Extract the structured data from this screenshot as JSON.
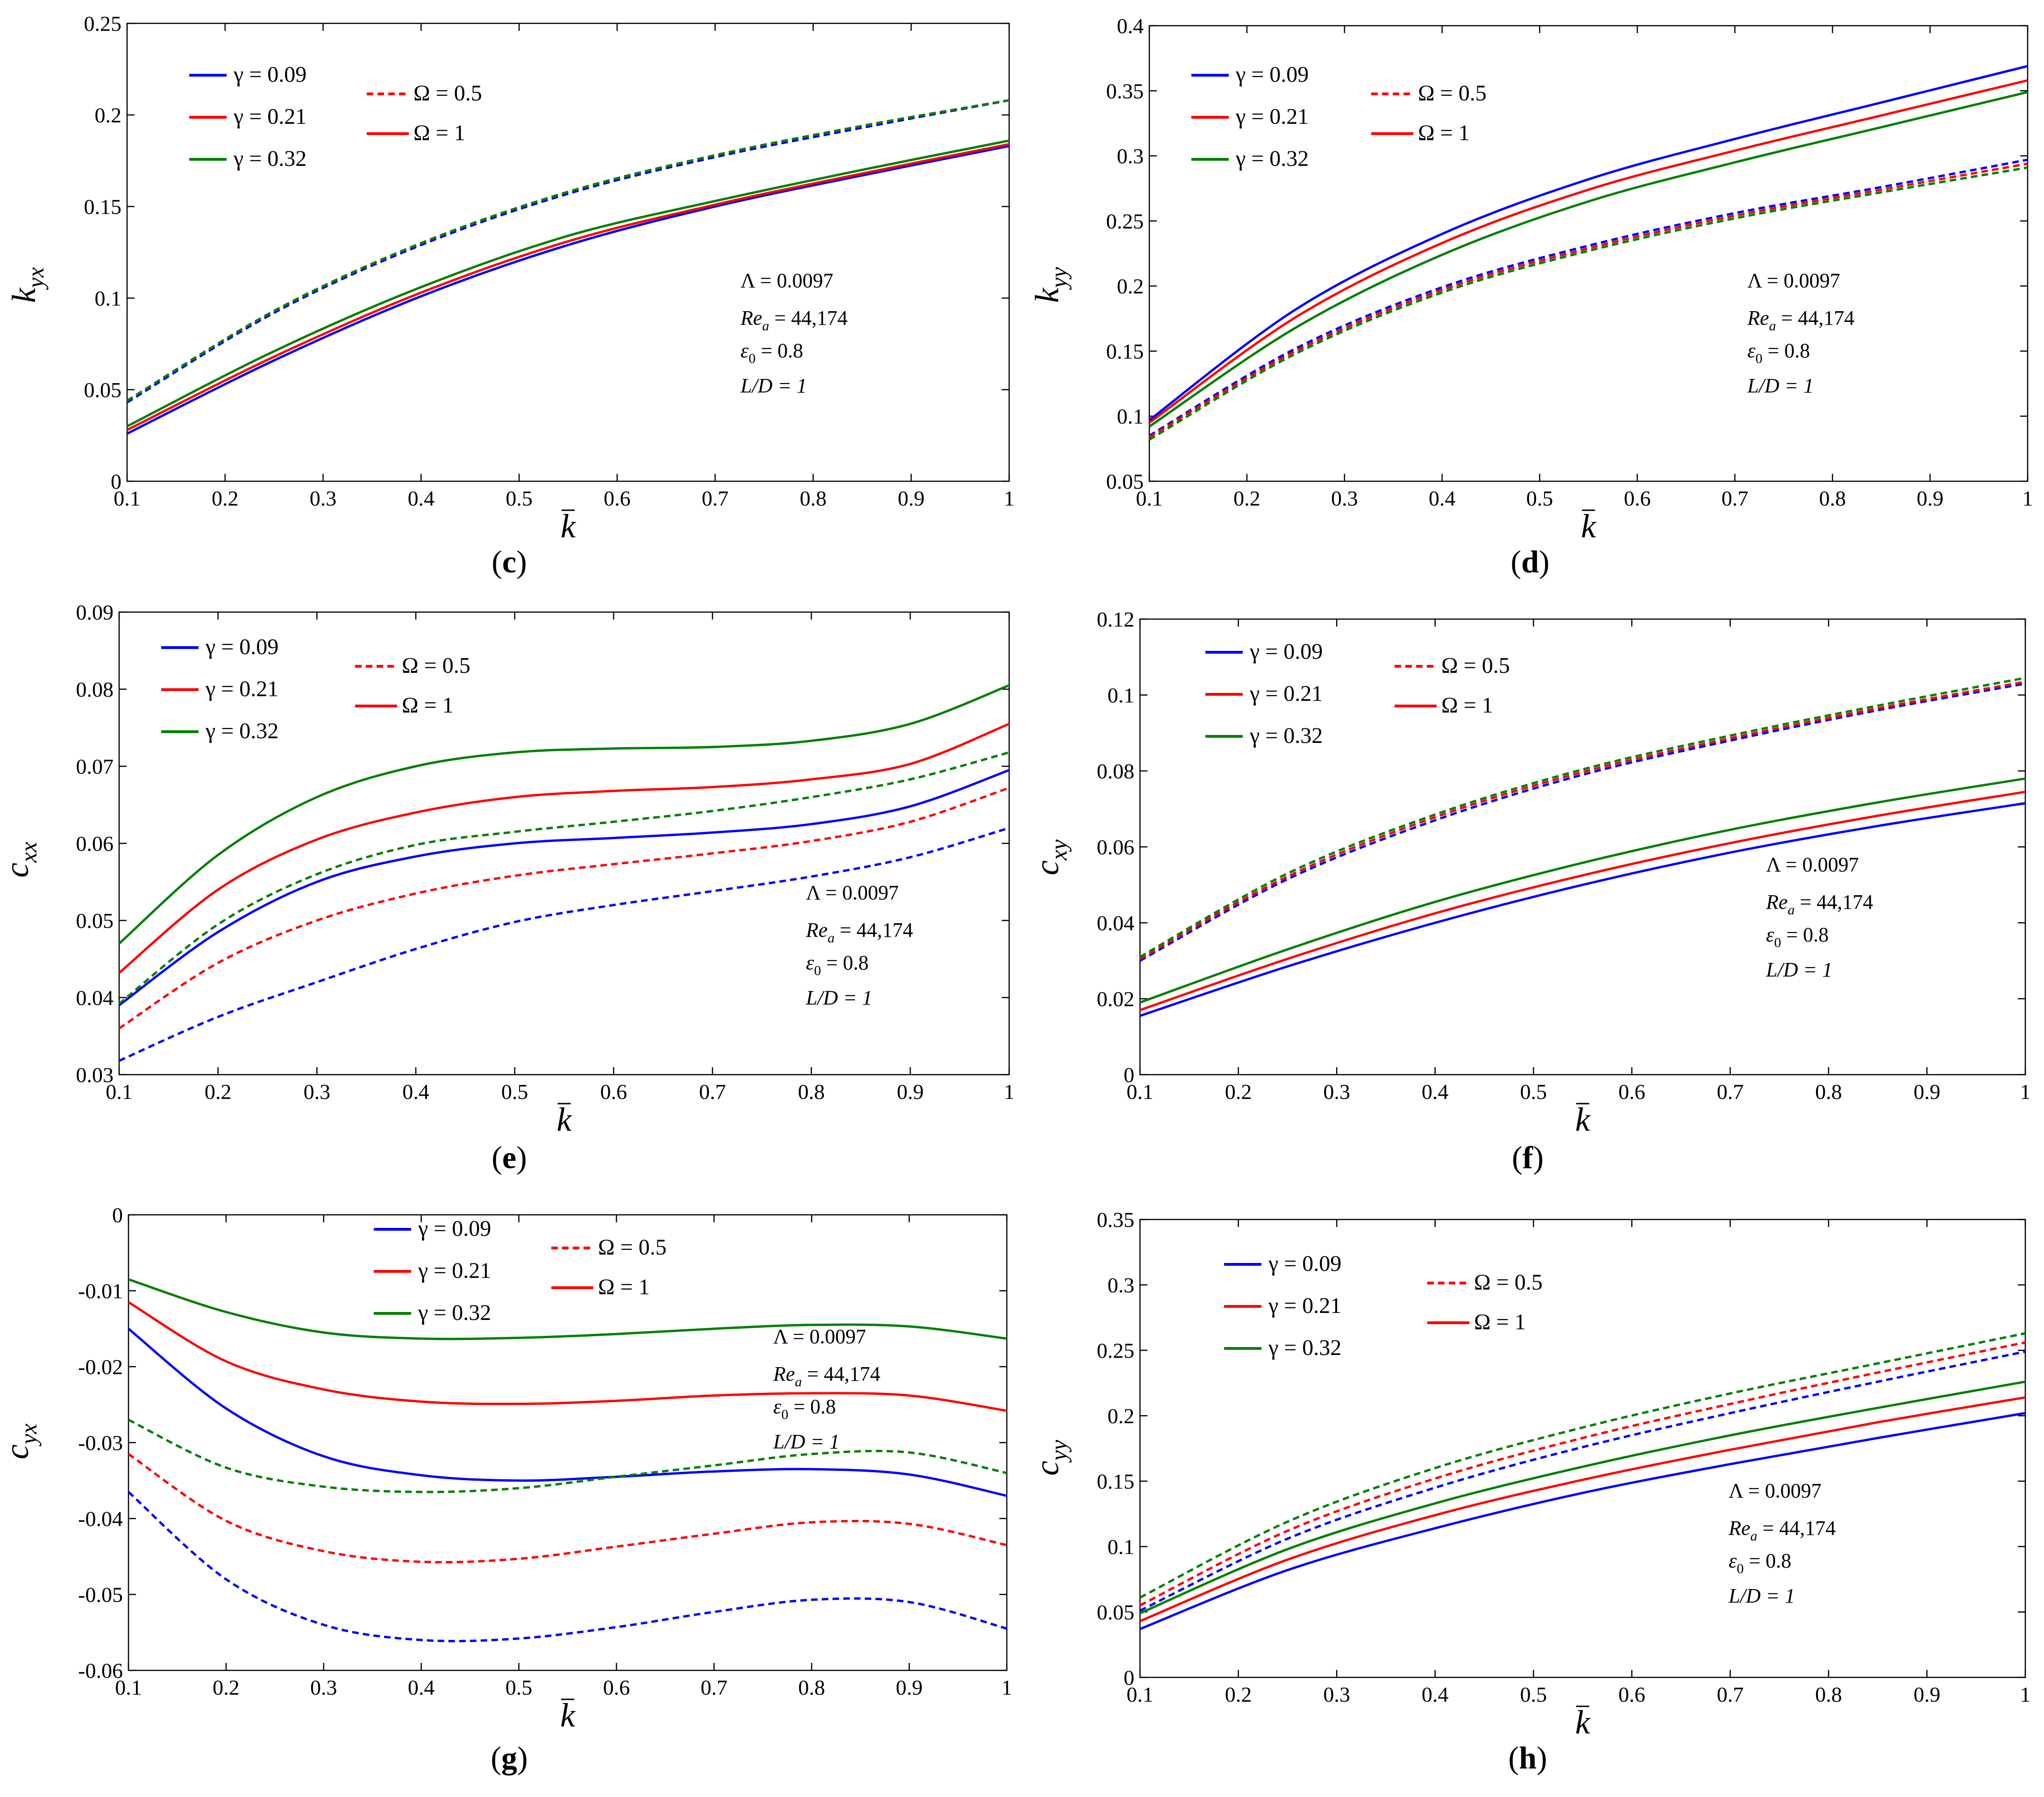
{
  "figure_label": "Dynamic coefficient charts",
  "legend": {
    "gammas": [
      {
        "label": "γ = 0.09",
        "color": "#0000ff"
      },
      {
        "label": "γ = 0.21",
        "color": "#ff0000"
      },
      {
        "label": "γ = 0.32",
        "color": "#007f00"
      }
    ],
    "omegas": [
      {
        "label": "Ω = 0.5",
        "style": "dashed",
        "color": "#ff0000"
      },
      {
        "label": "Ω = 1",
        "style": "solid",
        "color": "#ff0000"
      }
    ]
  },
  "annotation": {
    "lambda": "Λ = 0.0097",
    "rea": "Re",
    "rea_sub": "a",
    "rea_val": " = 44,174",
    "eps": "ε",
    "eps_sub": "0",
    "eps_val": " = 0.8",
    "ld": "L/D = 1"
  },
  "xlabel": "k",
  "chart_data": [
    {
      "id": "c",
      "caption": "c",
      "type": "line",
      "ylabel_main": "k",
      "ylabel_sub": "yx",
      "xlim": [
        0.1,
        1
      ],
      "ylim": [
        0,
        0.25
      ],
      "xticks": [
        "0.1",
        "0.2",
        "0.3",
        "0.4",
        "0.5",
        "0.6",
        "0.7",
        "0.8",
        "0.9",
        "1"
      ],
      "yticks": [
        "0",
        "0.05",
        "0.1",
        "0.15",
        "0.2",
        "0.25"
      ],
      "x": [
        0.1,
        0.25,
        0.4,
        0.55,
        0.7,
        0.85,
        1.0
      ],
      "series": [
        {
          "name": "γ = 0.09, Ω = 1",
          "color": "#0000ff",
          "dash": false,
          "values": [
            0.026,
            0.066,
            0.101,
            0.129,
            0.15,
            0.167,
            0.183
          ]
        },
        {
          "name": "γ = 0.21, Ω = 1",
          "color": "#ff0000",
          "dash": false,
          "values": [
            0.028,
            0.068,
            0.103,
            0.131,
            0.151,
            0.168,
            0.184
          ]
        },
        {
          "name": "γ = 0.32, Ω = 1",
          "color": "#007f00",
          "dash": false,
          "values": [
            0.03,
            0.071,
            0.106,
            0.134,
            0.153,
            0.17,
            0.186
          ]
        },
        {
          "name": "γ = 0.09, Ω = 0.5",
          "color": "#0000ff",
          "dash": true,
          "values": [
            0.043,
            0.092,
            0.129,
            0.157,
            0.177,
            0.193,
            0.208
          ]
        },
        {
          "name": "γ = 0.21, Ω = 0.5",
          "color": "#ff0000",
          "dash": true,
          "values": [
            0.044,
            0.093,
            0.13,
            0.158,
            0.178,
            0.194,
            0.208
          ]
        },
        {
          "name": "γ = 0.32, Ω = 0.5",
          "color": "#007f00",
          "dash": true,
          "values": [
            0.044,
            0.093,
            0.13,
            0.158,
            0.178,
            0.194,
            0.208
          ]
        }
      ]
    },
    {
      "id": "d",
      "caption": "d",
      "type": "line",
      "ylabel_main": "k",
      "ylabel_sub": "yy",
      "xlim": [
        0.1,
        1
      ],
      "ylim": [
        0.05,
        0.4
      ],
      "xticks": [
        "0.1",
        "0.2",
        "0.3",
        "0.4",
        "0.5",
        "0.6",
        "0.7",
        "0.8",
        "0.9",
        "1"
      ],
      "yticks": [
        "0.05",
        "0.1",
        "0.15",
        "0.2",
        "0.25",
        "0.3",
        "0.35",
        "0.4"
      ],
      "x": [
        0.1,
        0.25,
        0.4,
        0.55,
        0.7,
        0.85,
        1.0
      ],
      "series": [
        {
          "name": "γ = 0.09, Ω = 1",
          "color": "#0000ff",
          "dash": false,
          "values": [
            0.097,
            0.182,
            0.24,
            0.282,
            0.313,
            0.341,
            0.369
          ]
        },
        {
          "name": "γ = 0.21, Ω = 1",
          "color": "#ff0000",
          "dash": false,
          "values": [
            0.095,
            0.176,
            0.233,
            0.274,
            0.304,
            0.331,
            0.358
          ]
        },
        {
          "name": "γ = 0.32, Ω = 1",
          "color": "#007f00",
          "dash": false,
          "values": [
            0.092,
            0.168,
            0.224,
            0.265,
            0.295,
            0.322,
            0.349
          ]
        },
        {
          "name": "γ = 0.09, Ω = 0.5",
          "color": "#0000ff",
          "dash": true,
          "values": [
            0.085,
            0.152,
            0.199,
            0.231,
            0.256,
            0.276,
            0.297
          ]
        },
        {
          "name": "γ = 0.21, Ω = 0.5",
          "color": "#ff0000",
          "dash": true,
          "values": [
            0.084,
            0.15,
            0.197,
            0.229,
            0.254,
            0.274,
            0.294
          ]
        },
        {
          "name": "γ = 0.32, Ω = 0.5",
          "color": "#007f00",
          "dash": true,
          "values": [
            0.082,
            0.148,
            0.195,
            0.227,
            0.252,
            0.272,
            0.291
          ]
        }
      ]
    },
    {
      "id": "e",
      "caption": "e",
      "type": "line",
      "ylabel_main": "c",
      "ylabel_sub": "xx",
      "xlim": [
        0.1,
        1
      ],
      "ylim": [
        0.03,
        0.09
      ],
      "xticks": [
        "0.1",
        "0.2",
        "0.3",
        "0.4",
        "0.5",
        "0.6",
        "0.7",
        "0.8",
        "0.9",
        "1"
      ],
      "yticks": [
        "0.03",
        "0.04",
        "0.05",
        "0.06",
        "0.07",
        "0.08",
        "0.09"
      ],
      "x": [
        0.1,
        0.2,
        0.3,
        0.4,
        0.5,
        0.6,
        0.7,
        0.8,
        0.9,
        1.0
      ],
      "series": [
        {
          "name": "γ = 0.09, Ω = 1",
          "color": "#0000ff",
          "dash": false,
          "values": [
            0.039,
            0.0485,
            0.055,
            0.0583,
            0.06,
            0.0607,
            0.0614,
            0.0625,
            0.0648,
            0.0695
          ]
        },
        {
          "name": "γ = 0.21, Ω = 1",
          "color": "#ff0000",
          "dash": false,
          "values": [
            0.0432,
            0.054,
            0.0605,
            0.064,
            0.066,
            0.0668,
            0.0673,
            0.0683,
            0.0703,
            0.0755
          ]
        },
        {
          "name": "γ = 0.32, Ω = 1",
          "color": "#007f00",
          "dash": false,
          "values": [
            0.047,
            0.0585,
            0.066,
            0.07,
            0.0718,
            0.0723,
            0.0725,
            0.0733,
            0.0755,
            0.0805
          ]
        },
        {
          "name": "γ = 0.09, Ω = 0.5",
          "color": "#0000ff",
          "dash": true,
          "values": [
            0.0318,
            0.0375,
            0.042,
            0.0463,
            0.0498,
            0.052,
            0.0538,
            0.0557,
            0.0582,
            0.062
          ]
        },
        {
          "name": "γ = 0.21, Ω = 0.5",
          "color": "#ff0000",
          "dash": true,
          "values": [
            0.036,
            0.0445,
            0.05,
            0.0535,
            0.0558,
            0.0573,
            0.0587,
            0.0603,
            0.0628,
            0.0672
          ]
        },
        {
          "name": "γ = 0.32, Ω = 0.5",
          "color": "#007f00",
          "dash": true,
          "values": [
            0.0392,
            0.0495,
            0.056,
            0.0598,
            0.0615,
            0.0628,
            0.0642,
            0.066,
            0.0683,
            0.0718
          ]
        }
      ]
    },
    {
      "id": "f",
      "caption": "f",
      "type": "line",
      "ylabel_main": "c",
      "ylabel_sub": "xy",
      "xlim": [
        0.1,
        1
      ],
      "ylim": [
        0,
        0.12
      ],
      "xticks": [
        "0.1",
        "0.2",
        "0.3",
        "0.4",
        "0.5",
        "0.6",
        "0.7",
        "0.8",
        "0.9",
        "1"
      ],
      "yticks": [
        "0",
        "0.02",
        "0.04",
        "0.06",
        "0.08",
        "0.1",
        "0.12"
      ],
      "x": [
        0.1,
        0.25,
        0.4,
        0.55,
        0.7,
        0.85,
        1.0
      ],
      "series": [
        {
          "name": "γ = 0.09, Ω = 1",
          "color": "#0000ff",
          "dash": false,
          "values": [
            0.0155,
            0.0285,
            0.04,
            0.05,
            0.0585,
            0.0655,
            0.0715
          ]
        },
        {
          "name": "γ = 0.21, Ω = 1",
          "color": "#ff0000",
          "dash": false,
          "values": [
            0.017,
            0.0305,
            0.0425,
            0.0525,
            0.061,
            0.0682,
            0.0745
          ]
        },
        {
          "name": "γ = 0.32, Ω = 1",
          "color": "#007f00",
          "dash": false,
          "values": [
            0.019,
            0.033,
            0.0455,
            0.0558,
            0.0645,
            0.0717,
            0.078
          ]
        },
        {
          "name": "γ = 0.09, Ω = 0.5",
          "color": "#0000ff",
          "dash": true,
          "values": [
            0.03,
            0.0515,
            0.067,
            0.079,
            0.088,
            0.096,
            0.103
          ]
        },
        {
          "name": "γ = 0.21, Ω = 0.5",
          "color": "#ff0000",
          "dash": true,
          "values": [
            0.0305,
            0.0522,
            0.0678,
            0.0797,
            0.0886,
            0.0965,
            0.1035
          ]
        },
        {
          "name": "γ = 0.32, Ω = 0.5",
          "color": "#007f00",
          "dash": true,
          "values": [
            0.031,
            0.053,
            0.0685,
            0.0804,
            0.0893,
            0.0972,
            0.1045
          ]
        }
      ]
    },
    {
      "id": "g",
      "caption": "g",
      "type": "line",
      "ylabel_main": "c",
      "ylabel_sub": "yx",
      "xlim": [
        0.1,
        1
      ],
      "ylim": [
        -0.06,
        0
      ],
      "xticks": [
        "0.1",
        "0.2",
        "0.3",
        "0.4",
        "0.5",
        "0.6",
        "0.7",
        "0.8",
        "0.9",
        "1"
      ],
      "yticks": [
        "-0.06",
        "-0.05",
        "-0.04",
        "-0.03",
        "-0.02",
        "-0.01",
        "0"
      ],
      "x": [
        0.1,
        0.2,
        0.3,
        0.4,
        0.5,
        0.6,
        0.7,
        0.8,
        0.9,
        1.0
      ],
      "series": [
        {
          "name": "γ = 0.09, Ω = 1",
          "color": "#0000ff",
          "dash": false,
          "values": [
            -0.015,
            -0.0255,
            -0.0318,
            -0.0343,
            -0.035,
            -0.0345,
            -0.0338,
            -0.0335,
            -0.0342,
            -0.037
          ]
        },
        {
          "name": "γ = 0.21, Ω = 1",
          "color": "#ff0000",
          "dash": false,
          "values": [
            -0.0115,
            -0.0193,
            -0.023,
            -0.0246,
            -0.0249,
            -0.0245,
            -0.0238,
            -0.0235,
            -0.0238,
            -0.0258
          ]
        },
        {
          "name": "γ = 0.32, Ω = 1",
          "color": "#007f00",
          "dash": false,
          "values": [
            -0.0085,
            -0.0128,
            -0.0155,
            -0.0163,
            -0.0162,
            -0.0157,
            -0.015,
            -0.0145,
            -0.0147,
            -0.0163
          ]
        },
        {
          "name": "γ = 0.09, Ω = 0.5",
          "color": "#0000ff",
          "dash": true,
          "values": [
            -0.0365,
            -0.048,
            -0.054,
            -0.056,
            -0.0558,
            -0.0543,
            -0.0523,
            -0.0507,
            -0.051,
            -0.0545
          ]
        },
        {
          "name": "γ = 0.21, Ω = 0.5",
          "color": "#ff0000",
          "dash": true,
          "values": [
            -0.0315,
            -0.0403,
            -0.0443,
            -0.0457,
            -0.0453,
            -0.0437,
            -0.042,
            -0.0405,
            -0.0407,
            -0.0435
          ]
        },
        {
          "name": "γ = 0.32, Ω = 0.5",
          "color": "#007f00",
          "dash": true,
          "values": [
            -0.027,
            -0.0333,
            -0.0358,
            -0.0365,
            -0.036,
            -0.0345,
            -0.033,
            -0.0315,
            -0.0313,
            -0.034
          ]
        }
      ]
    },
    {
      "id": "h",
      "caption": "h",
      "type": "line",
      "ylabel_main": "c",
      "ylabel_sub": "yy",
      "xlim": [
        0.1,
        1
      ],
      "ylim": [
        0,
        0.35
      ],
      "xticks": [
        "0.1",
        "0.2",
        "0.3",
        "0.4",
        "0.5",
        "0.6",
        "0.7",
        "0.8",
        "0.9",
        "1"
      ],
      "yticks": [
        "0",
        "0.05",
        "0.1",
        "0.15",
        "0.2",
        "0.25",
        "0.3",
        "0.35"
      ],
      "x": [
        0.1,
        0.25,
        0.4,
        0.55,
        0.7,
        0.85,
        1.0
      ],
      "series": [
        {
          "name": "γ = 0.09, Ω = 1",
          "color": "#0000ff",
          "dash": false,
          "values": [
            0.037,
            0.082,
            0.114,
            0.141,
            0.163,
            0.183,
            0.202
          ]
        },
        {
          "name": "γ = 0.21, Ω = 1",
          "color": "#ff0000",
          "dash": false,
          "values": [
            0.043,
            0.09,
            0.124,
            0.151,
            0.174,
            0.195,
            0.214
          ]
        },
        {
          "name": "γ = 0.32, Ω = 1",
          "color": "#007f00",
          "dash": false,
          "values": [
            0.049,
            0.098,
            0.133,
            0.161,
            0.185,
            0.206,
            0.226
          ]
        },
        {
          "name": "γ = 0.09, Ω = 0.5",
          "color": "#0000ff",
          "dash": true,
          "values": [
            0.051,
            0.106,
            0.145,
            0.176,
            0.202,
            0.226,
            0.249
          ]
        },
        {
          "name": "γ = 0.21, Ω = 0.5",
          "color": "#ff0000",
          "dash": true,
          "values": [
            0.055,
            0.112,
            0.152,
            0.183,
            0.209,
            0.233,
            0.256
          ]
        },
        {
          "name": "γ = 0.32, Ω = 0.5",
          "color": "#007f00",
          "dash": true,
          "values": [
            0.061,
            0.119,
            0.16,
            0.191,
            0.217,
            0.24,
            0.263
          ]
        }
      ]
    }
  ]
}
